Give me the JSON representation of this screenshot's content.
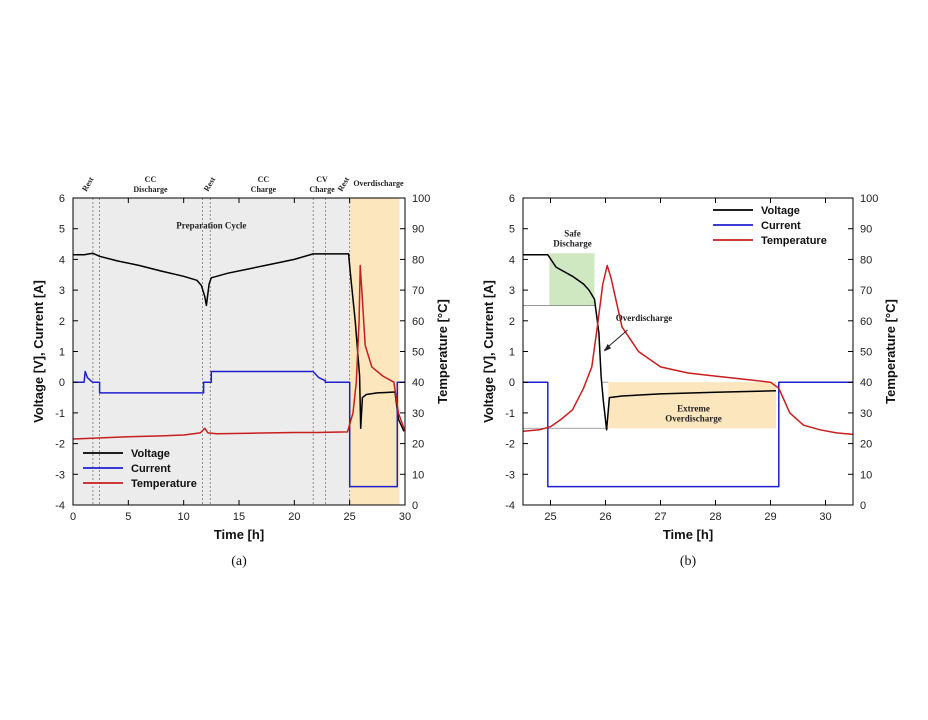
{
  "chart_data": [
    {
      "type": "line",
      "caption": "(a)",
      "xlabel": "Time [h]",
      "ylabel": "Voltage [V],   Current [A]",
      "y2label": "Temperature [°C]",
      "xlim": [
        0,
        30
      ],
      "ylim": [
        -4,
        6
      ],
      "y2lim": [
        0,
        100
      ],
      "xticks": [
        "0",
        "5",
        "10",
        "15",
        "20",
        "25",
        "30"
      ],
      "yticks": [
        "-4",
        "-3",
        "-2",
        "-1",
        "0",
        "1",
        "2",
        "3",
        "4",
        "5",
        "6"
      ],
      "y2ticks": [
        "0",
        "10",
        "20",
        "30",
        "40",
        "50",
        "60",
        "70",
        "80",
        "90",
        "100"
      ],
      "colors": {
        "voltage": "#000000",
        "current": "#1f1fd0",
        "temperature": "#c81e1e",
        "preparation_fill": "#ececec",
        "overdischarge_fill": "#fbe6bd"
      },
      "legend": {
        "position": "bottom-left",
        "entries": [
          "Voltage",
          "Current",
          "Temperature"
        ]
      },
      "annotations": [
        "Preparation Cycle"
      ],
      "phases": [
        {
          "label": "Rest",
          "x": 1.2,
          "rotated": true
        },
        {
          "label": "CC\nDischarge",
          "x": 7.0,
          "rotated": false
        },
        {
          "label": "Rest",
          "x": 12.2,
          "rotated": true
        },
        {
          "label": "CC\nCharge",
          "x": 17.2,
          "rotated": false
        },
        {
          "label": "CV\nCharge",
          "x": 22.5,
          "rotated": false
        },
        {
          "label": "Rest",
          "x": 24.3,
          "rotated": true
        },
        {
          "label": "Overdischarge",
          "x": 27.6,
          "rotated": false
        }
      ],
      "dividers": [
        1.8,
        2.4,
        11.7,
        12.4,
        21.7,
        22.8,
        25.0
      ],
      "regions": [
        {
          "name": "preparation",
          "x": [
            0,
            25
          ]
        },
        {
          "name": "overdischarge",
          "x": [
            25,
            29.5
          ]
        }
      ],
      "series": [
        {
          "name": "Voltage",
          "axis": "left",
          "x": [
            0,
            1.0,
            1.8,
            2.4,
            4,
            6,
            8,
            10,
            11.2,
            11.6,
            11.9,
            12.05,
            12.3,
            12.5,
            14,
            16,
            18,
            20,
            21.7,
            22.8,
            24.9,
            25.05,
            25.5,
            25.9,
            26.0,
            26.15,
            26.5,
            27.5,
            29.1,
            29.4,
            29.9
          ],
          "y": [
            4.15,
            4.15,
            4.2,
            4.1,
            3.95,
            3.8,
            3.62,
            3.45,
            3.32,
            3.15,
            2.8,
            2.5,
            3.2,
            3.4,
            3.55,
            3.7,
            3.85,
            4.0,
            4.18,
            4.18,
            4.18,
            3.6,
            2.0,
            0.2,
            -1.5,
            -0.5,
            -0.4,
            -0.35,
            -0.32,
            -1.2,
            -1.6
          ]
        },
        {
          "name": "Current",
          "axis": "left",
          "x": [
            0,
            1.0,
            1.1,
            1.3,
            1.6,
            1.8,
            2.4,
            2.4,
            11.8,
            11.8,
            12.5,
            12.5,
            21.7,
            22.2,
            22.8,
            22.8,
            25.0,
            25.0,
            29.3,
            29.3,
            30
          ],
          "y": [
            0,
            0,
            0.35,
            0.15,
            0.05,
            0,
            0,
            -0.35,
            -0.35,
            0,
            0,
            0.35,
            0.35,
            0.15,
            0.05,
            0,
            0,
            -3.4,
            -3.4,
            0,
            0
          ]
        },
        {
          "name": "Temperature",
          "axis": "right",
          "x": [
            0,
            2,
            5,
            8,
            10,
            11.5,
            11.9,
            12.2,
            13,
            16,
            20,
            22,
            24.8,
            25.3,
            25.6,
            25.85,
            25.95,
            26.1,
            26.4,
            27.0,
            28.0,
            29.0,
            29.4,
            30
          ],
          "y": [
            21.5,
            21.8,
            22.2,
            22.5,
            22.8,
            23.5,
            25,
            23.5,
            23.2,
            23.4,
            23.6,
            23.6,
            23.8,
            30,
            40,
            60,
            78,
            70,
            52,
            45,
            42,
            40,
            30,
            24
          ]
        }
      ]
    },
    {
      "type": "line",
      "caption": "(b)",
      "xlabel": "Time [h]",
      "ylabel": "Voltage [V],   Current [A]",
      "y2label": "Temperature [°C]",
      "xlim": [
        24.5,
        30.5
      ],
      "ylim": [
        -4,
        6
      ],
      "y2lim": [
        0,
        100
      ],
      "xticks": [
        "25",
        "26",
        "27",
        "28",
        "29",
        "30"
      ],
      "yticks": [
        "-4",
        "-3",
        "-2",
        "-1",
        "0",
        "1",
        "2",
        "3",
        "4",
        "5",
        "6"
      ],
      "y2ticks": [
        "0",
        "10",
        "20",
        "30",
        "40",
        "50",
        "60",
        "70",
        "80",
        "90",
        "100"
      ],
      "colors": {
        "voltage": "#000000",
        "current": "#1f1fd0",
        "temperature": "#c81e1e",
        "safe_fill": "#cfe8c2",
        "extreme_fill": "#fbe6bd"
      },
      "legend": {
        "position": "top-right",
        "entries": [
          "Voltage",
          "Current",
          "Temperature"
        ]
      },
      "annotations": [
        "Safe\nDischarge",
        "Overdischarge",
        "Extreme\nOverdischarge"
      ],
      "regions": [
        {
          "name": "safe-discharge",
          "x": [
            24.98,
            25.8
          ],
          "y": [
            2.5,
            4.2
          ]
        },
        {
          "name": "extreme-overdischarge",
          "x": [
            26.05,
            29.1
          ],
          "y": [
            -1.5,
            0
          ]
        }
      ],
      "series": [
        {
          "name": "Voltage",
          "axis": "left",
          "x": [
            24.5,
            24.95,
            25.1,
            25.4,
            25.6,
            25.7,
            25.8,
            25.88,
            25.92,
            25.96,
            26.02,
            26.07,
            26.3,
            27,
            28,
            29.1
          ],
          "y": [
            4.15,
            4.15,
            3.75,
            3.45,
            3.2,
            3.0,
            2.7,
            1.6,
            0.2,
            -0.6,
            -1.55,
            -0.5,
            -0.45,
            -0.38,
            -0.33,
            -0.28
          ]
        },
        {
          "name": "Current",
          "axis": "left",
          "x": [
            24.5,
            24.95,
            24.95,
            29.15,
            29.15,
            30.5
          ],
          "y": [
            0,
            0,
            -3.4,
            -3.4,
            0,
            0
          ]
        },
        {
          "name": "Temperature",
          "axis": "right",
          "x": [
            24.5,
            24.8,
            25.0,
            25.2,
            25.4,
            25.6,
            25.75,
            25.85,
            25.95,
            26.03,
            26.1,
            26.3,
            26.6,
            27.0,
            27.5,
            28.0,
            28.5,
            29.0,
            29.15,
            29.35,
            29.6,
            29.9,
            30.2,
            30.5
          ],
          "y": [
            24,
            24.5,
            25.5,
            28,
            31,
            38,
            45,
            58,
            72,
            78,
            74,
            58,
            50,
            45,
            43,
            42,
            41,
            40,
            38,
            30,
            26,
            24.5,
            23.5,
            23
          ]
        }
      ]
    }
  ]
}
